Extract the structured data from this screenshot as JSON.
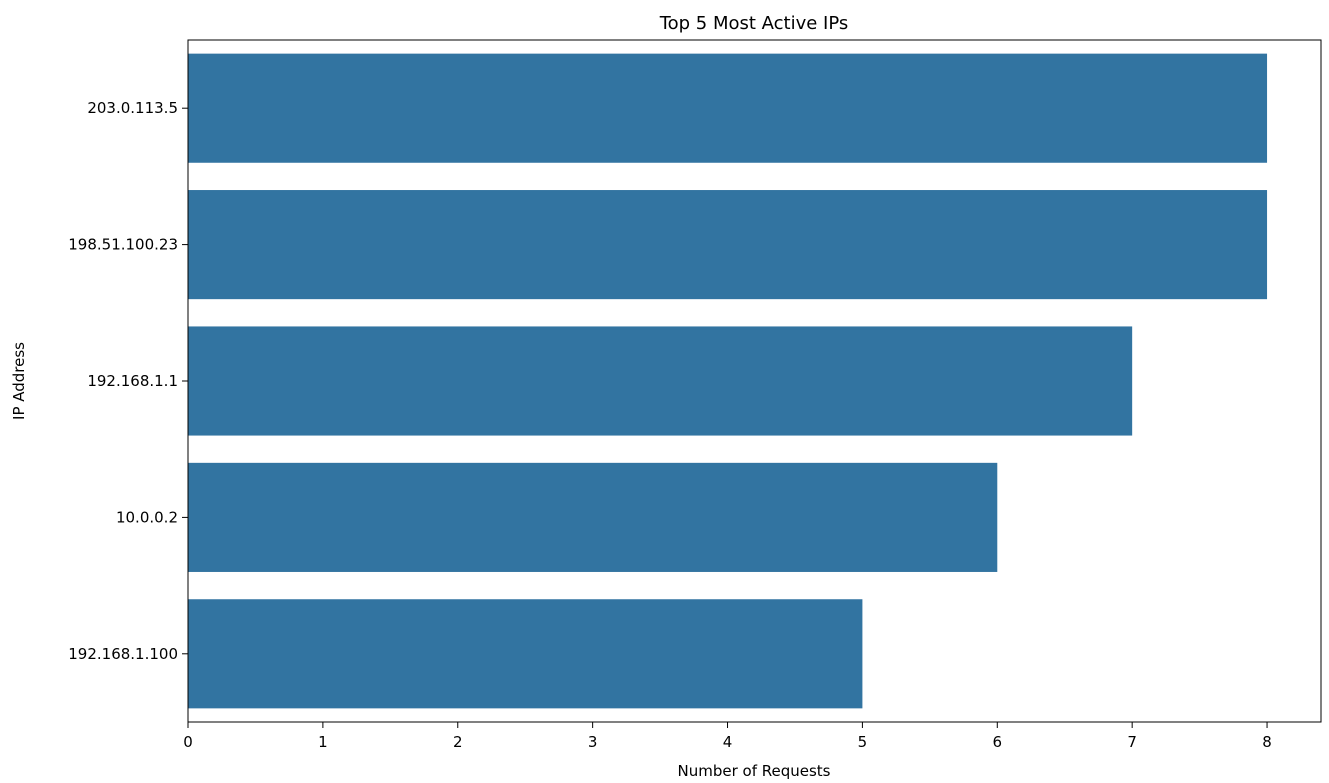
{
  "chart_data": {
    "type": "bar",
    "orientation": "horizontal",
    "title": "Top 5 Most Active IPs",
    "xlabel": "Number of Requests",
    "ylabel": "IP Address",
    "categories": [
      "203.0.113.5",
      "198.51.100.23",
      "192.168.1.1",
      "10.0.0.2",
      "192.168.1.100"
    ],
    "values": [
      8,
      8,
      7,
      6,
      5
    ],
    "xlim": [
      0,
      8.4
    ],
    "xticks": [
      "0",
      "1",
      "2",
      "3",
      "4",
      "5",
      "6",
      "7",
      "8"
    ],
    "grid": false,
    "bar_color": "#3274a1"
  }
}
